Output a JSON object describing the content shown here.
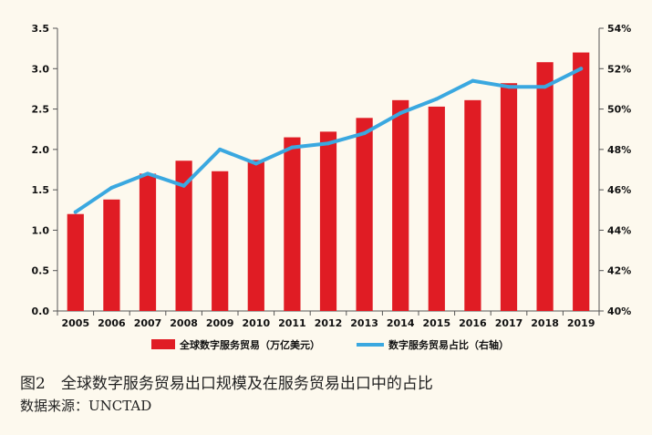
{
  "chart_data": {
    "type": "bar",
    "categories": [
      "2005",
      "2006",
      "2007",
      "2008",
      "2009",
      "2010",
      "2011",
      "2012",
      "2013",
      "2014",
      "2015",
      "2016",
      "2017",
      "2018",
      "2019"
    ],
    "series": [
      {
        "name": "全球数字服务贸易（万亿美元）",
        "type": "bar",
        "axis": "left",
        "color": "#e01c24",
        "values": [
          1.2,
          1.38,
          1.7,
          1.86,
          1.73,
          1.87,
          2.15,
          2.22,
          2.39,
          2.61,
          2.53,
          2.61,
          2.82,
          3.08,
          3.2
        ]
      },
      {
        "name": "数字服务贸易占比（右轴）",
        "type": "line",
        "axis": "right",
        "color": "#3aa8e0",
        "values": [
          44.9,
          46.1,
          46.8,
          46.2,
          48.0,
          47.3,
          48.1,
          48.3,
          48.8,
          49.8,
          50.5,
          51.4,
          51.1,
          51.1,
          52.0
        ]
      }
    ],
    "left_axis": {
      "ylim": [
        0,
        3.5
      ],
      "ticks": [
        "0.0",
        "0.5",
        "1.0",
        "1.5",
        "2.0",
        "2.5",
        "3.0",
        "3.5"
      ]
    },
    "right_axis": {
      "ylim": [
        40,
        54
      ],
      "ticks": [
        "40%",
        "42%",
        "44%",
        "46%",
        "48%",
        "50%",
        "52%",
        "54%"
      ]
    },
    "grid": false,
    "legend_position": "bottom"
  },
  "caption": {
    "title": "图2　全球数字服务贸易出口规模及在服务贸易出口中的占比",
    "source": "数据来源：UNCTAD"
  }
}
